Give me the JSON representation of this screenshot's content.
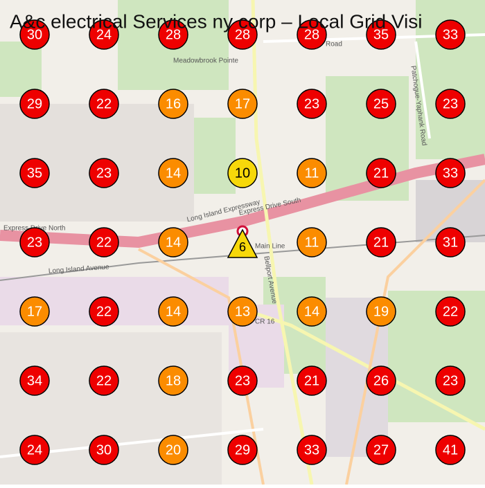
{
  "header": {
    "title": "A&c electrical Services ny corp – Local Grid Visi"
  },
  "map_labels": [
    "Meadowbrook Pointe",
    "Long Island Expressway",
    "Express Drive South",
    "Express Drive North",
    "Main Line",
    "Long Island Avenue",
    "Bellport Avenue",
    "CR 16",
    "Patchogue-Yaphank Road",
    "Road"
  ],
  "grid": {
    "rows": [
      [
        30,
        24,
        28,
        28,
        28,
        35,
        33
      ],
      [
        29,
        22,
        16,
        17,
        23,
        25,
        23
      ],
      [
        35,
        23,
        14,
        10,
        11,
        21,
        33
      ],
      [
        23,
        22,
        14,
        null,
        11,
        21,
        31
      ],
      [
        17,
        22,
        14,
        13,
        14,
        19,
        22
      ],
      [
        34,
        22,
        18,
        23,
        21,
        26,
        23
      ],
      [
        24,
        30,
        20,
        29,
        33,
        27,
        41
      ]
    ],
    "business_rank": 6,
    "bands": [
      {
        "upto": 10,
        "color": "#f7d80a"
      },
      {
        "upto": 20,
        "color": "#fb8c00"
      },
      {
        "color": "#ee0000"
      }
    ]
  }
}
